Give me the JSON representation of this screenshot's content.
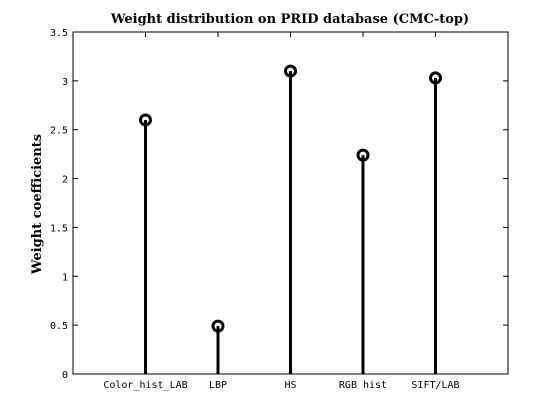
{
  "chart_data": {
    "type": "stem",
    "title": "Weight distribution on PRID database (CMC-top)",
    "xlabel": "",
    "ylabel": "Weight coefficients",
    "categories": [
      "Color_hist_LAB",
      "LBP",
      "HS",
      "RGB hist",
      "SIFT/LAB"
    ],
    "values": [
      2.6,
      0.49,
      3.1,
      2.24,
      3.03
    ],
    "xlim": [
      0,
      6
    ],
    "ylim": [
      0,
      3.5
    ],
    "yticks": [
      0,
      0.5,
      1,
      1.5,
      2,
      2.5,
      3,
      3.5
    ],
    "ytick_labels": [
      "0",
      "0.5",
      "1",
      "1.5",
      "2",
      "2.5",
      "3",
      "3.5"
    ],
    "grid": false,
    "marker": "circle"
  }
}
